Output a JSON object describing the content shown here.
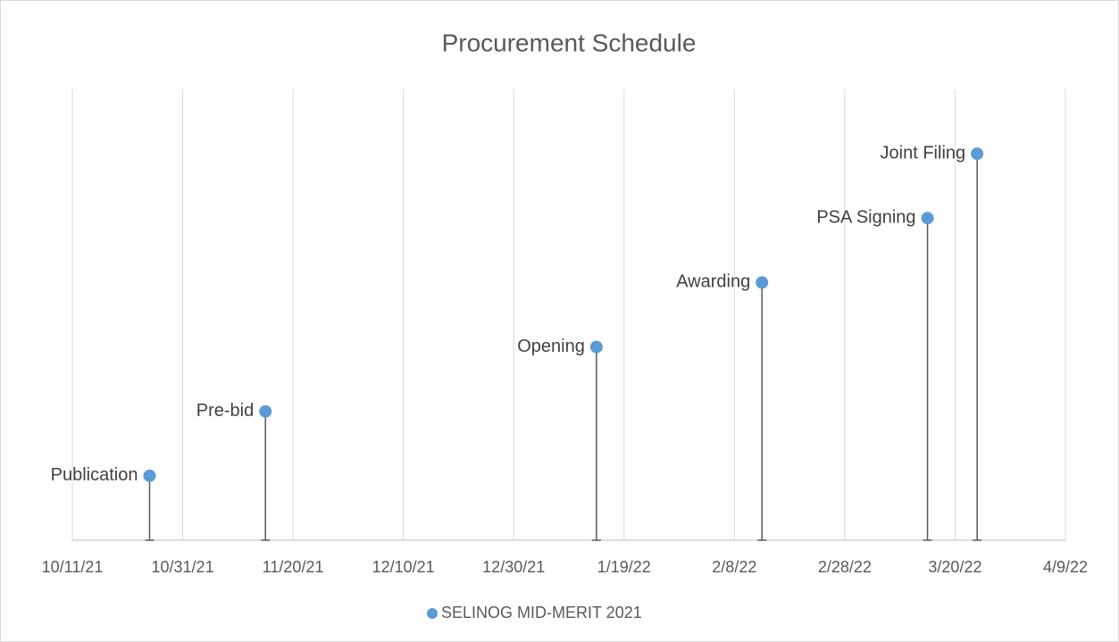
{
  "chart_data": {
    "type": "scatter",
    "title": "Procurement Schedule",
    "x": [
      "2021-10-25",
      "2021-11-15",
      "2022-01-14",
      "2022-02-13",
      "2022-03-15",
      "2022-03-24"
    ],
    "series": [
      {
        "name": "SELINOG MID-MERIT 2021",
        "color": "#5b9bd5",
        "values": [
          10,
          20,
          30,
          40,
          50,
          60
        ],
        "labels": [
          "Publication",
          "Pre-bid",
          "Opening",
          "Awarding",
          "PSA Signing",
          "Joint Filing"
        ]
      }
    ],
    "xlim": [
      "2021-10-11",
      "2022-04-09"
    ],
    "xticks": [
      {
        "value": "2021-10-11",
        "label": "10/11/21"
      },
      {
        "value": "2021-10-31",
        "label": "10/31/21"
      },
      {
        "value": "2021-11-20",
        "label": "11/20/21"
      },
      {
        "value": "2021-12-10",
        "label": "12/10/21"
      },
      {
        "value": "2021-12-30",
        "label": "12/30/21"
      },
      {
        "value": "2022-01-19",
        "label": "1/19/22"
      },
      {
        "value": "2022-02-08",
        "label": "2/8/22"
      },
      {
        "value": "2022-02-28",
        "label": "2/28/22"
      },
      {
        "value": "2022-03-20",
        "label": "3/20/22"
      },
      {
        "value": "2022-04-09",
        "label": "4/9/22"
      }
    ],
    "ylim": [
      0,
      70
    ],
    "grid": true,
    "legend": "bottom",
    "drop_lines": true
  }
}
